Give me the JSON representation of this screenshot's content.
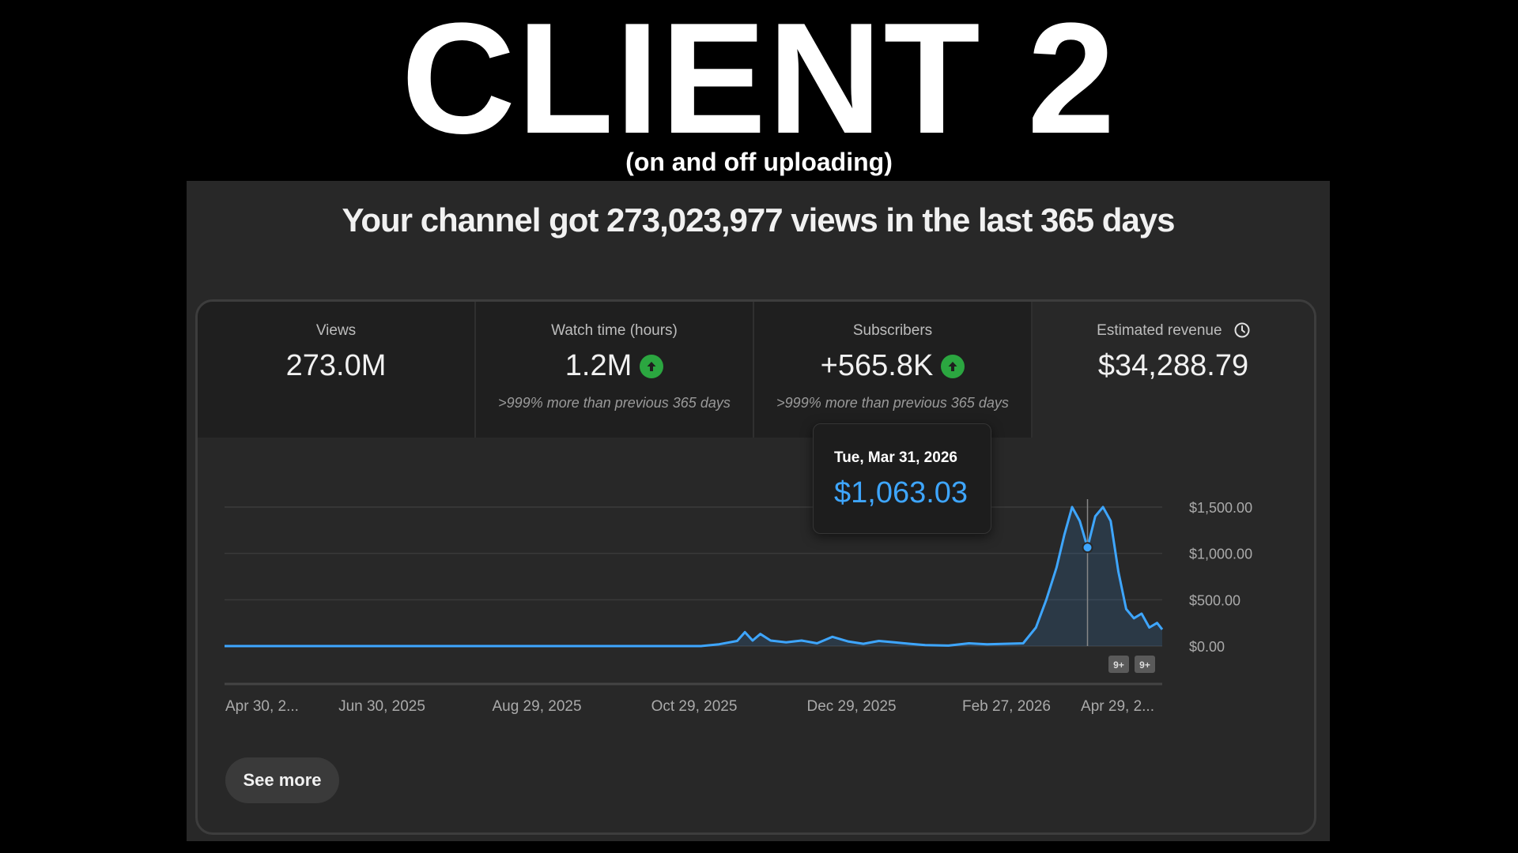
{
  "overlay": {
    "headline": "CLIENT 2",
    "subheadline": "(on and off uploading)"
  },
  "panel": {
    "title": "Your channel got 273,023,977 views in the last 365 days",
    "see_more_label": "See more"
  },
  "metrics": [
    {
      "label": "Views",
      "value": "273.0M",
      "trend": "",
      "note": ""
    },
    {
      "label": "Watch time (hours)",
      "value": "1.2M",
      "trend": "up",
      "note": ">999% more than previous 365 days"
    },
    {
      "label": "Subscribers",
      "value": "+565.8K",
      "trend": "up",
      "note": ">999% more than previous 365 days"
    },
    {
      "label": "Estimated revenue",
      "value": "$34,288.79",
      "trend": "",
      "note": "",
      "icon": "clock-icon"
    }
  ],
  "tooltip": {
    "date": "Tue, Mar 31, 2026",
    "value": "$1,063.03"
  },
  "chart_data": {
    "type": "area",
    "metric": "Estimated revenue",
    "ylim": [
      0,
      1500
    ],
    "yticks": [
      0,
      500,
      1000,
      1500
    ],
    "ytick_labels": [
      "$0.00",
      "$500.00",
      "$1,000.00",
      "$1,500.00"
    ],
    "xtick_labels": [
      "Apr 30, 2...",
      "Jun 30, 2025",
      "Aug 29, 2025",
      "Oct 29, 2025",
      "Dec 29, 2025",
      "Feb 27, 2026",
      "Apr 29, 2..."
    ],
    "xlim": [
      "2025-04-30",
      "2026-04-29"
    ],
    "grid": true,
    "line_color": "#3ea6ff",
    "highlight": {
      "x": "2026-03-31",
      "y": 1063.03
    },
    "markers": [
      "9+",
      "9+"
    ],
    "points": [
      [
        "2025-04-30",
        0
      ],
      [
        "2025-11-01",
        0
      ],
      [
        "2025-11-08",
        20
      ],
      [
        "2025-11-15",
        55
      ],
      [
        "2025-11-18",
        150
      ],
      [
        "2025-11-21",
        60
      ],
      [
        "2025-11-24",
        130
      ],
      [
        "2025-11-28",
        60
      ],
      [
        "2025-12-04",
        40
      ],
      [
        "2025-12-10",
        60
      ],
      [
        "2025-12-16",
        30
      ],
      [
        "2025-12-22",
        100
      ],
      [
        "2025-12-28",
        50
      ],
      [
        "2026-01-03",
        25
      ],
      [
        "2026-01-09",
        55
      ],
      [
        "2026-01-15",
        40
      ],
      [
        "2026-01-21",
        25
      ],
      [
        "2026-01-27",
        10
      ],
      [
        "2026-02-05",
        5
      ],
      [
        "2026-02-13",
        30
      ],
      [
        "2026-02-20",
        20
      ],
      [
        "2026-02-27",
        25
      ],
      [
        "2026-03-06",
        30
      ],
      [
        "2026-03-11",
        200
      ],
      [
        "2026-03-15",
        500
      ],
      [
        "2026-03-19",
        850
      ],
      [
        "2026-03-22",
        1200
      ],
      [
        "2026-03-25",
        1500
      ],
      [
        "2026-03-28",
        1350
      ],
      [
        "2026-03-31",
        1063.03
      ],
      [
        "2026-04-03",
        1400
      ],
      [
        "2026-04-06",
        1500
      ],
      [
        "2026-04-09",
        1350
      ],
      [
        "2026-04-12",
        800
      ],
      [
        "2026-04-15",
        400
      ],
      [
        "2026-04-18",
        300
      ],
      [
        "2026-04-21",
        350
      ],
      [
        "2026-04-24",
        200
      ],
      [
        "2026-04-27",
        250
      ],
      [
        "2026-04-29",
        180
      ]
    ]
  }
}
